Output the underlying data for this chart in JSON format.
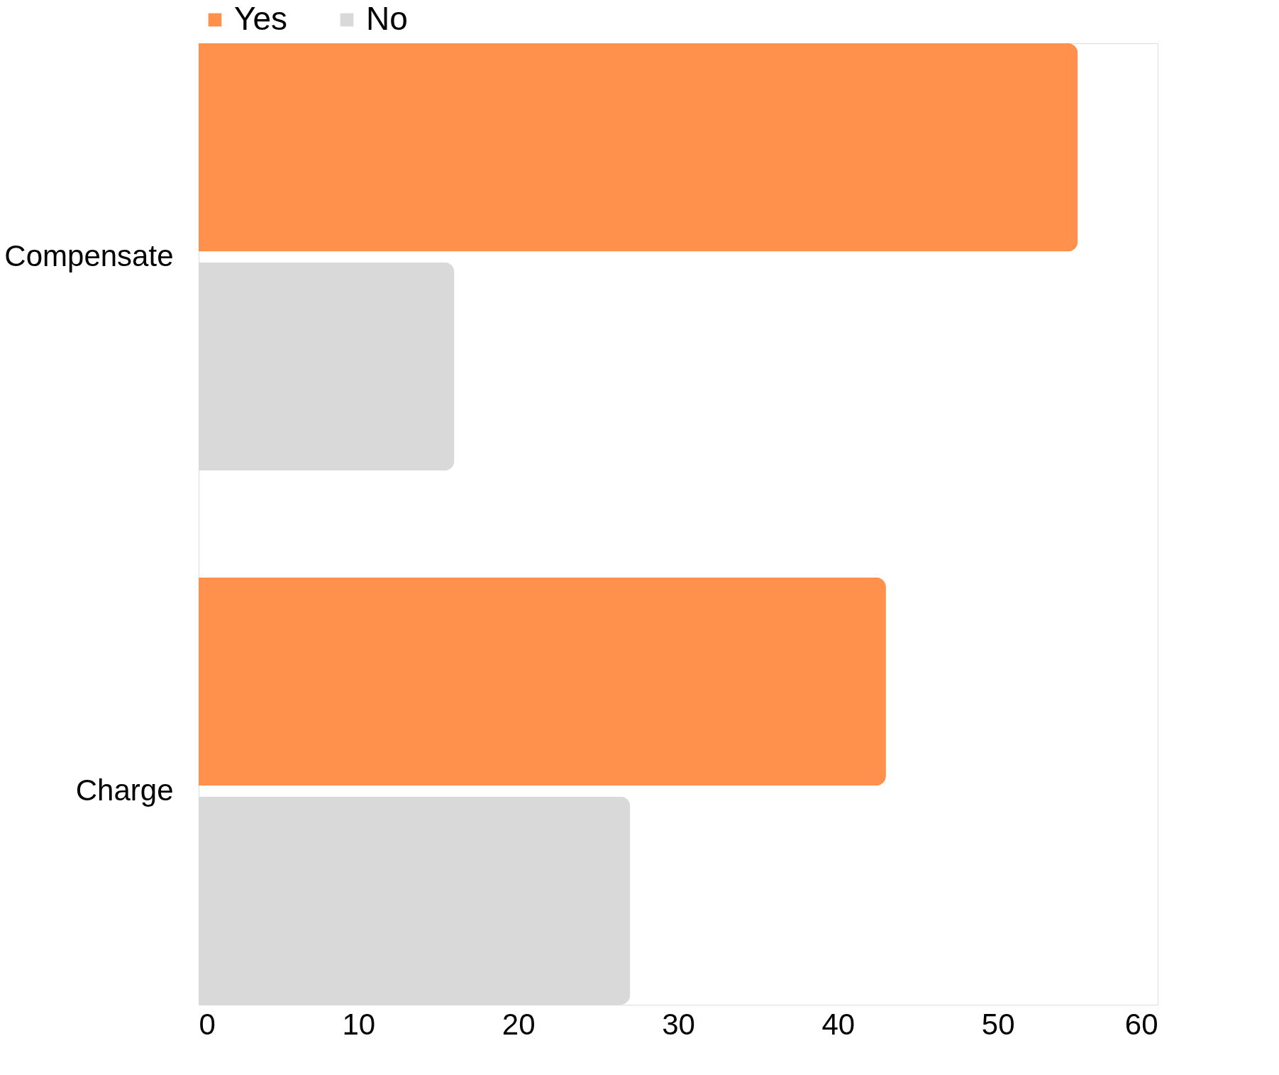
{
  "chart_data": {
    "type": "bar",
    "orientation": "horizontal",
    "categories": [
      "Compensate",
      "Charge"
    ],
    "series": [
      {
        "name": "Yes",
        "color": "#ff914d",
        "values": [
          55,
          43
        ]
      },
      {
        "name": "No",
        "color": "#d9d9d9",
        "values": [
          16,
          27
        ]
      }
    ],
    "xlim": [
      0,
      60
    ],
    "xticks": [
      0,
      10,
      20,
      30,
      40,
      50,
      60
    ],
    "grid": false,
    "legend": "top"
  }
}
